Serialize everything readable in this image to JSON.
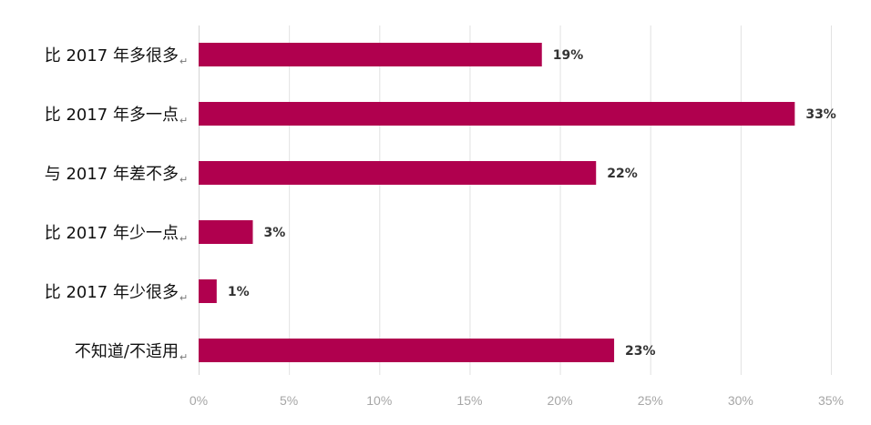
{
  "chart_data": {
    "type": "bar",
    "orientation": "horizontal",
    "categories": [
      "比 2017 年多很多",
      "比 2017 年多一点",
      "与 2017 年差不多",
      "比 2017 年少一点",
      "比 2017 年少很多",
      "不知道/不适用"
    ],
    "values": [
      19,
      33,
      22,
      3,
      1,
      23
    ],
    "data_labels": [
      "19%",
      "33%",
      "22%",
      "3%",
      "1%",
      "23%"
    ],
    "xlim": [
      0,
      35
    ],
    "x_ticks": [
      0,
      5,
      10,
      15,
      20,
      25,
      30,
      35
    ],
    "x_tick_labels": [
      "0%",
      "5%",
      "10%",
      "15%",
      "20%",
      "25%",
      "30%",
      "35%"
    ],
    "category_mark": "↵",
    "title": "",
    "xlabel": "",
    "ylabel": "",
    "grid": "vertical",
    "legend": "none",
    "bar_color": "#b0004e"
  }
}
